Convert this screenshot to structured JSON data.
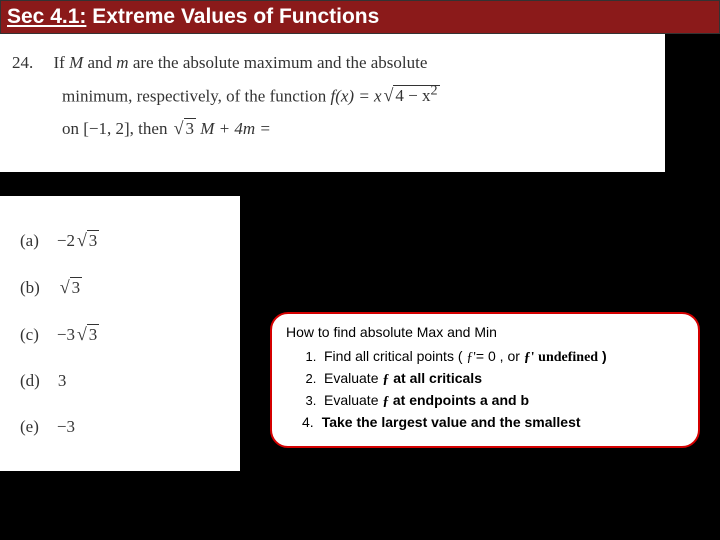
{
  "header": {
    "prefix": "Sec 4.1:",
    "title": " Extreme Values of Functions"
  },
  "problem": {
    "number": "24.",
    "line1a": "If ",
    "M": "M",
    "line1b": " and ",
    "m": "m",
    "line1c": " are the absolute maximum and the absolute",
    "line2a": "minimum, respectively, of the function ",
    "fx": "f(x) = x",
    "rad1": "4 − x",
    "sup2a": "2",
    "line3a": "on ",
    "interval": "[−1, 2],",
    "line3b": " then ",
    "rad2": "3",
    "line3c": " M + 4m ="
  },
  "choices": {
    "a_label": "(a)",
    "a_val_pre": "−2",
    "a_rad": "3",
    "b_label": "(b)",
    "b_rad": "3",
    "c_label": "(c)",
    "c_val_pre": "−3",
    "c_rad": "3",
    "d_label": "(d)",
    "d_val": "3",
    "e_label": "(e)",
    "e_val": "−3"
  },
  "callout": {
    "title": "How to find absolute Max and Min",
    "step1a": "Find all critical points ( ",
    "step1f": "ƒ'",
    "step1b": "= 0 , or ",
    "step1c": "ƒ' undefined",
    "step1d": " )",
    "step2a": "Evaluate ",
    "step2f": "ƒ",
    "step2b": " at all criticals",
    "step3a": "Evaluate ",
    "step3f": "ƒ ",
    "step3b": " at endpoints  a and b",
    "step4": "Take the largest value and the smallest",
    "marker4": "4."
  }
}
